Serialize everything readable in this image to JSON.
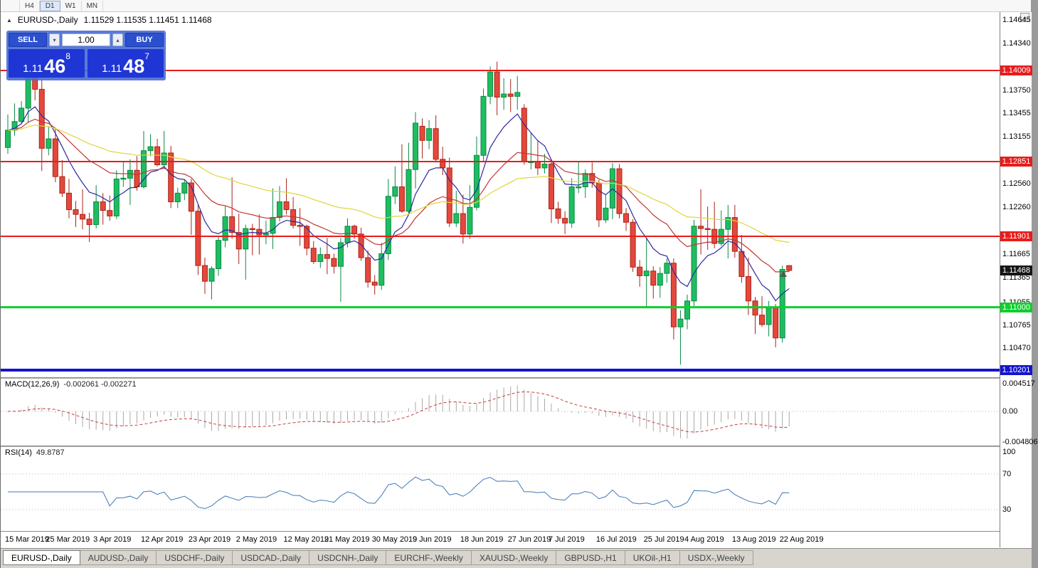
{
  "toolbar": {
    "timeframes": [
      {
        "label": "H4",
        "active": false
      },
      {
        "label": "D1",
        "active": true
      },
      {
        "label": "W1",
        "active": false
      },
      {
        "label": "MN",
        "active": false
      }
    ]
  },
  "chart_header": {
    "one_click_toggle": "▲",
    "symbol_title": "EURUSD-,Daily",
    "ohlc": "1.11529 1.11535 1.11451 1.11468"
  },
  "trade_panel": {
    "sell_label": "SELL",
    "buy_label": "BUY",
    "volume": "1.00",
    "sell_price": {
      "small": "1.11",
      "big": "46",
      "sup": "8"
    },
    "buy_price": {
      "small": "1.11",
      "big": "48",
      "sup": "7"
    }
  },
  "price_axis": {
    "labels": [
      "1.14645",
      "1.14340",
      "1.13750",
      "1.13455",
      "1.13155",
      "1.12560",
      "1.12260",
      "1.11665",
      "1.11365",
      "1.11055",
      "1.10765",
      "1.10470"
    ],
    "current": {
      "label": "1.11468",
      "price": 1.11468,
      "bg": "#151515"
    }
  },
  "levels": [
    {
      "label": "1.14009",
      "price": 1.14009,
      "color": "#e81c1c",
      "width": 2
    },
    {
      "label": "1.12851",
      "price": 1.12851,
      "color": "#e81c1c",
      "width": 2
    },
    {
      "label": "1.11901",
      "price": 1.11901,
      "color": "#e81c1c",
      "width": 2
    },
    {
      "label": "1.11000",
      "price": 1.11,
      "color": "#0ecf2e",
      "width": 3
    },
    {
      "label": "1.10201",
      "price": 1.10201,
      "color": "#1414cc",
      "width": 4
    }
  ],
  "macd_panel": {
    "name": "MACD(12,26,9)",
    "values": "-0.002061 -0.002271",
    "histogram_color": "#a8a8a8",
    "signal_color": "#c43b3b",
    "axis": [
      {
        "label": "0.004517",
        "value": 0.004517
      },
      {
        "label": "0.00",
        "value": 0
      },
      {
        "label": "-0.004806",
        "value": -0.004806
      }
    ]
  },
  "rsi_panel": {
    "name": "RSI(14)",
    "value": "49.8787",
    "line_color": "#3f77b5",
    "levels": [
      70,
      30
    ],
    "axis": [
      {
        "label": "100",
        "value": 100
      },
      {
        "label": "70",
        "value": 70
      },
      {
        "label": "30",
        "value": 30
      }
    ]
  },
  "date_axis": {
    "ticks": [
      {
        "index": 0,
        "label": "15 Mar 2019"
      },
      {
        "index": 6,
        "label": "25 Mar 2019"
      },
      {
        "index": 13,
        "label": "3 Apr 2019"
      },
      {
        "index": 20,
        "label": "12 Apr 2019"
      },
      {
        "index": 27,
        "label": "23 Apr 2019"
      },
      {
        "index": 34,
        "label": "2 May 2019"
      },
      {
        "index": 41,
        "label": "12 May 2019"
      },
      {
        "index": 47,
        "label": "21 May 2019"
      },
      {
        "index": 54,
        "label": "30 May 2019"
      },
      {
        "index": 60,
        "label": "9 Jun 2019"
      },
      {
        "index": 67,
        "label": "18 Jun 2019"
      },
      {
        "index": 74,
        "label": "27 Jun 2019"
      },
      {
        "index": 80,
        "label": "7 Jul 2019"
      },
      {
        "index": 87,
        "label": "16 Jul 2019"
      },
      {
        "index": 94,
        "label": "25 Jul 2019"
      },
      {
        "index": 100,
        "label": "4 Aug 2019"
      },
      {
        "index": 107,
        "label": "13 Aug 2019"
      },
      {
        "index": 114,
        "label": "22 Aug 2019"
      }
    ]
  },
  "tabs": [
    {
      "label": "EURUSD-,Daily",
      "active": true
    },
    {
      "label": "AUDUSD-,Daily",
      "active": false
    },
    {
      "label": "USDCHF-,Daily",
      "active": false
    },
    {
      "label": "USDCAD-,Daily",
      "active": false
    },
    {
      "label": "USDCNH-,Daily",
      "active": false
    },
    {
      "label": "EURCHF-,Weekly",
      "active": false
    },
    {
      "label": "XAUUSD-,Weekly",
      "active": false
    },
    {
      "label": "GBPUSD-,H1",
      "active": false
    },
    {
      "label": "UKOil-,H1",
      "active": false
    },
    {
      "label": "USDX-,Weekly",
      "active": false
    }
  ],
  "chart_data": {
    "type": "candlestick",
    "symbol": "EURUSD",
    "timeframe": "Daily",
    "visible_range": {
      "start": "15 Mar 2019",
      "end": "22 Aug 2019"
    },
    "y_axis_range": [
      1.102,
      1.1465
    ],
    "up_color": "#1ebd61",
    "up_border": "#0b8a43",
    "down_color": "#e4483c",
    "down_border": "#a92318",
    "ma_fast_color": "#2b2ba0",
    "ma_mid_color": "#c23535",
    "ma_slow_color": "#e0d53a",
    "overlays": [
      "EMA fast (blue)",
      "EMA mid (red)",
      "EMA slow (yellow)"
    ],
    "candles": [
      [
        1.1303,
        1.1345,
        1.1295,
        1.1325
      ],
      [
        1.1325,
        1.1359,
        1.1318,
        1.1336
      ],
      [
        1.1336,
        1.1362,
        1.1333,
        1.1353
      ],
      [
        1.1353,
        1.1418,
        1.1335,
        1.1402
      ],
      [
        1.1402,
        1.141,
        1.1363,
        1.1377
      ],
      [
        1.1377,
        1.139,
        1.1273,
        1.1302
      ],
      [
        1.1302,
        1.133,
        1.1293,
        1.1314
      ],
      [
        1.1314,
        1.1327,
        1.1259,
        1.1266
      ],
      [
        1.1266,
        1.1287,
        1.124,
        1.1245
      ],
      [
        1.1245,
        1.1263,
        1.1213,
        1.1224
      ],
      [
        1.1224,
        1.1235,
        1.1202,
        1.1218
      ],
      [
        1.1218,
        1.125,
        1.1199,
        1.1212
      ],
      [
        1.1212,
        1.122,
        1.1183,
        1.1205
      ],
      [
        1.1205,
        1.1255,
        1.12,
        1.1234
      ],
      [
        1.1234,
        1.1245,
        1.1205,
        1.1223
      ],
      [
        1.1223,
        1.1242,
        1.121,
        1.1216
      ],
      [
        1.1216,
        1.1274,
        1.1212,
        1.1263
      ],
      [
        1.1263,
        1.1285,
        1.1253,
        1.1264
      ],
      [
        1.1264,
        1.1288,
        1.123,
        1.1274
      ],
      [
        1.1274,
        1.1292,
        1.1248,
        1.1253
      ],
      [
        1.1253,
        1.1324,
        1.1251,
        1.1299
      ],
      [
        1.1299,
        1.132,
        1.1292,
        1.1304
      ],
      [
        1.1304,
        1.1314,
        1.1279,
        1.1281
      ],
      [
        1.1281,
        1.1324,
        1.1276,
        1.1296
      ],
      [
        1.1296,
        1.1305,
        1.1226,
        1.1234
      ],
      [
        1.1234,
        1.1252,
        1.1226,
        1.1245
      ],
      [
        1.1245,
        1.1262,
        1.1236,
        1.1258
      ],
      [
        1.1258,
        1.1263,
        1.1192,
        1.1222
      ],
      [
        1.1222,
        1.123,
        1.1141,
        1.1153
      ],
      [
        1.1153,
        1.1163,
        1.1117,
        1.1133
      ],
      [
        1.1133,
        1.1152,
        1.111,
        1.1149
      ],
      [
        1.1149,
        1.119,
        1.114,
        1.1185
      ],
      [
        1.1185,
        1.1229,
        1.1176,
        1.1215
      ],
      [
        1.1215,
        1.1265,
        1.1187,
        1.1195
      ],
      [
        1.1195,
        1.1219,
        1.1155,
        1.1174
      ],
      [
        1.1174,
        1.1205,
        1.1135,
        1.12
      ],
      [
        1.12,
        1.1206,
        1.1166,
        1.1199
      ],
      [
        1.1199,
        1.1218,
        1.1167,
        1.1192
      ],
      [
        1.1192,
        1.121,
        1.118,
        1.1194
      ],
      [
        1.1194,
        1.1251,
        1.1174,
        1.1214
      ],
      [
        1.1214,
        1.1254,
        1.1209,
        1.1234
      ],
      [
        1.1234,
        1.1264,
        1.1218,
        1.1224
      ],
      [
        1.1224,
        1.124,
        1.12,
        1.1204
      ],
      [
        1.1204,
        1.1226,
        1.1178,
        1.1203
      ],
      [
        1.1203,
        1.1205,
        1.1166,
        1.1175
      ],
      [
        1.1175,
        1.1184,
        1.1155,
        1.1158
      ],
      [
        1.1158,
        1.1176,
        1.115,
        1.1167
      ],
      [
        1.1167,
        1.1188,
        1.1142,
        1.1162
      ],
      [
        1.1162,
        1.1168,
        1.1143,
        1.1152
      ],
      [
        1.1152,
        1.1188,
        1.1107,
        1.1182
      ],
      [
        1.1182,
        1.1213,
        1.1176,
        1.1203
      ],
      [
        1.1203,
        1.1205,
        1.1187,
        1.1193
      ],
      [
        1.1193,
        1.1201,
        1.1159,
        1.1163
      ],
      [
        1.1163,
        1.1172,
        1.1125,
        1.1132
      ],
      [
        1.1132,
        1.1141,
        1.1116,
        1.1128
      ],
      [
        1.1128,
        1.1182,
        1.1122,
        1.1168
      ],
      [
        1.1168,
        1.1263,
        1.116,
        1.1241
      ],
      [
        1.1241,
        1.1279,
        1.1231,
        1.1253
      ],
      [
        1.1253,
        1.1307,
        1.122,
        1.1222
      ],
      [
        1.1222,
        1.1309,
        1.1219,
        1.1275
      ],
      [
        1.1275,
        1.1348,
        1.1251,
        1.1334
      ],
      [
        1.133,
        1.134,
        1.1289,
        1.1312
      ],
      [
        1.1312,
        1.1338,
        1.1301,
        1.1327
      ],
      [
        1.1327,
        1.1344,
        1.1284,
        1.1288
      ],
      [
        1.1288,
        1.1304,
        1.1268,
        1.1277
      ],
      [
        1.1277,
        1.129,
        1.1202,
        1.1207
      ],
      [
        1.1207,
        1.1248,
        1.1202,
        1.1219
      ],
      [
        1.1219,
        1.1243,
        1.1181,
        1.1193
      ],
      [
        1.1193,
        1.1255,
        1.1187,
        1.1227
      ],
      [
        1.1227,
        1.1317,
        1.1223,
        1.1293
      ],
      [
        1.1293,
        1.1378,
        1.1286,
        1.1368
      ],
      [
        1.1368,
        1.1406,
        1.1358,
        1.1399
      ],
      [
        1.1399,
        1.1412,
        1.1344,
        1.1367
      ],
      [
        1.1367,
        1.1391,
        1.1351,
        1.1371
      ],
      [
        1.1371,
        1.139,
        1.1348,
        1.1368
      ],
      [
        1.1368,
        1.1394,
        1.1351,
        1.1373
      ],
      [
        1.1353,
        1.1358,
        1.1281,
        1.1285
      ],
      [
        1.1285,
        1.1322,
        1.1275,
        1.1285
      ],
      [
        1.1285,
        1.1312,
        1.1268,
        1.1277
      ],
      [
        1.1277,
        1.1295,
        1.127,
        1.1282
      ],
      [
        1.1282,
        1.1288,
        1.1207,
        1.1225
      ],
      [
        1.1225,
        1.1234,
        1.1206,
        1.1213
      ],
      [
        1.1213,
        1.1222,
        1.1193,
        1.1207
      ],
      [
        1.1207,
        1.1264,
        1.1201,
        1.1253
      ],
      [
        1.1253,
        1.1286,
        1.1245,
        1.1253
      ],
      [
        1.1253,
        1.1275,
        1.1239,
        1.127
      ],
      [
        1.127,
        1.1284,
        1.1252,
        1.1258
      ],
      [
        1.1258,
        1.1262,
        1.1202,
        1.1211
      ],
      [
        1.1211,
        1.1243,
        1.1207,
        1.1226
      ],
      [
        1.1226,
        1.1283,
        1.1212,
        1.1276
      ],
      [
        1.1276,
        1.1282,
        1.1213,
        1.1219
      ],
      [
        1.1219,
        1.1226,
        1.1197,
        1.1208
      ],
      [
        1.1208,
        1.1212,
        1.1145,
        1.1151
      ],
      [
        1.1151,
        1.116,
        1.1126,
        1.114
      ],
      [
        1.114,
        1.1187,
        1.1101,
        1.1146
      ],
      [
        1.1146,
        1.1152,
        1.1111,
        1.1128
      ],
      [
        1.1128,
        1.1151,
        1.1112,
        1.1143
      ],
      [
        1.1143,
        1.1162,
        1.1131,
        1.1156
      ],
      [
        1.1156,
        1.1162,
        1.1059,
        1.1075
      ],
      [
        1.1075,
        1.1096,
        1.1027,
        1.1085
      ],
      [
        1.1085,
        1.1116,
        1.1072,
        1.1108
      ],
      [
        1.1108,
        1.1211,
        1.1101,
        1.1203
      ],
      [
        1.1203,
        1.125,
        1.1167,
        1.12
      ],
      [
        1.12,
        1.1228,
        1.1173,
        1.1199
      ],
      [
        1.1199,
        1.1234,
        1.1175,
        1.1181
      ],
      [
        1.1181,
        1.1223,
        1.1178,
        1.1199
      ],
      [
        1.1199,
        1.123,
        1.1162,
        1.1214
      ],
      [
        1.1214,
        1.123,
        1.1163,
        1.1171
      ],
      [
        1.1171,
        1.1192,
        1.1131,
        1.1139
      ],
      [
        1.1139,
        1.1163,
        1.109,
        1.1108
      ],
      [
        1.1108,
        1.1113,
        1.1066,
        1.109
      ],
      [
        1.109,
        1.1114,
        1.1075,
        1.1078
      ],
      [
        1.1078,
        1.1108,
        1.1063,
        1.1099
      ],
      [
        1.1099,
        1.1104,
        1.1049,
        1.1061
      ],
      [
        1.1061,
        1.1153,
        1.1055,
        1.1148
      ],
      [
        1.11529,
        1.11535,
        1.11451,
        1.11468
      ]
    ]
  }
}
